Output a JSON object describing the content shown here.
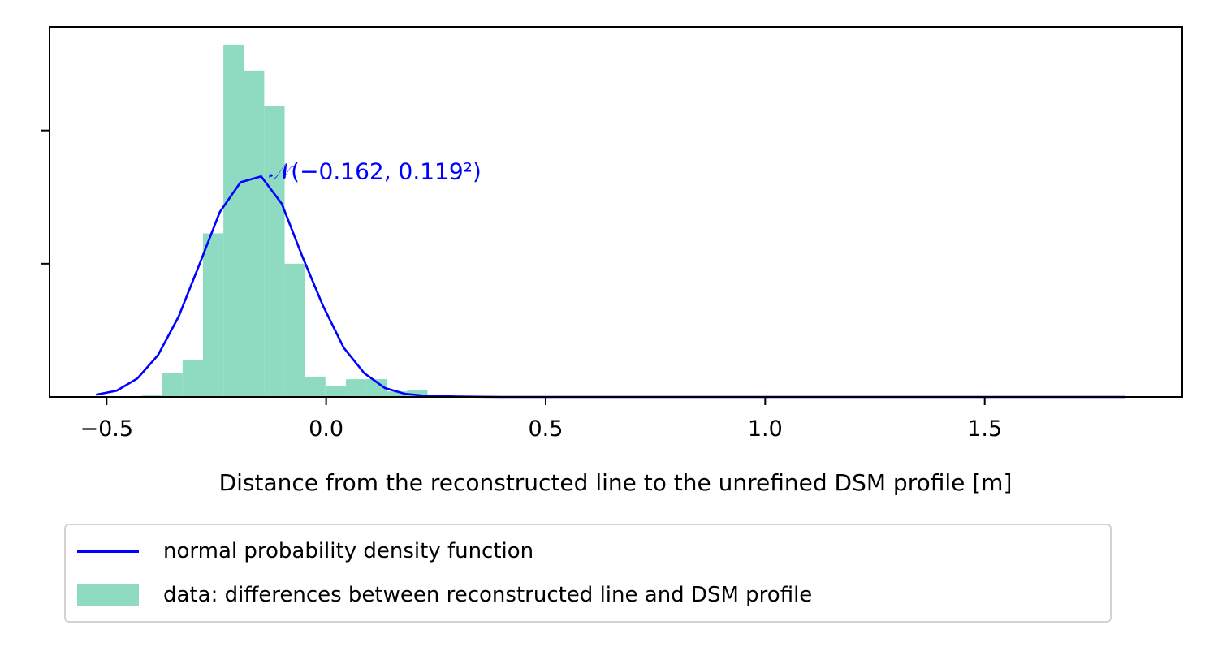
{
  "chart_data": {
    "type": "bar",
    "title": "",
    "xlabel": "Distance from the reconstructed line to the unrefined DSM profile [m]",
    "ylabel": "",
    "xlim": [
      -0.63,
      1.95
    ],
    "ylim": [
      0,
      1.0
    ],
    "xticks": [
      -0.5,
      0.0,
      0.5,
      1.0,
      1.5
    ],
    "xtick_labels": [
      "−0.5",
      "0.0",
      "0.5",
      "1.0",
      "1.5"
    ],
    "yticks": [
      0.36,
      0.72
    ],
    "grid": false,
    "histogram": {
      "name": "data: differences between reconstructed line and DSM profile",
      "color": "#8fdbc1",
      "bin_width": 0.0465,
      "bins": [
        {
          "x0": -0.42,
          "h": 0.004
        },
        {
          "x0": -0.3735,
          "h": 0.064
        },
        {
          "x0": -0.327,
          "h": 0.099
        },
        {
          "x0": -0.2805,
          "h": 0.442
        },
        {
          "x0": -0.234,
          "h": 0.952
        },
        {
          "x0": -0.1875,
          "h": 0.882
        },
        {
          "x0": -0.141,
          "h": 0.787
        },
        {
          "x0": -0.0945,
          "h": 0.36
        },
        {
          "x0": -0.048,
          "h": 0.055
        },
        {
          "x0": -0.0015,
          "h": 0.029
        },
        {
          "x0": 0.045,
          "h": 0.048
        },
        {
          "x0": 0.0915,
          "h": 0.048
        },
        {
          "x0": 0.138,
          "h": 0.015
        },
        {
          "x0": 0.1845,
          "h": 0.018
        },
        {
          "x0": 0.231,
          "h": 0.004
        }
      ]
    },
    "pdf": {
      "name": "normal probability density function",
      "color": "#0000ff",
      "x": [
        -0.524,
        -0.477,
        -0.43,
        -0.383,
        -0.336,
        -0.289,
        -0.242,
        -0.195,
        -0.148,
        -0.101,
        -0.054,
        -0.007,
        0.04,
        0.087,
        0.134,
        0.181,
        0.228,
        0.3,
        0.4,
        0.6,
        1.0,
        1.5,
        1.82
      ],
      "y": [
        0.006,
        0.017,
        0.05,
        0.113,
        0.217,
        0.357,
        0.5,
        0.58,
        0.596,
        0.522,
        0.379,
        0.246,
        0.133,
        0.064,
        0.024,
        0.008,
        0.003,
        0.001,
        0.0,
        0.0,
        0.0,
        0.0,
        0.0
      ]
    },
    "annotation": {
      "text": "𝒩(−0.162, 0.119²)",
      "x": -0.13,
      "y": 0.6,
      "color": "#0000ff"
    },
    "legend": {
      "placement": "below",
      "entries": [
        {
          "label": "normal probability density function",
          "kind": "line",
          "color": "#0000ff"
        },
        {
          "label": "data: differences between reconstructed line and DSM profile",
          "kind": "patch",
          "color": "#8fdbc1"
        }
      ]
    }
  }
}
